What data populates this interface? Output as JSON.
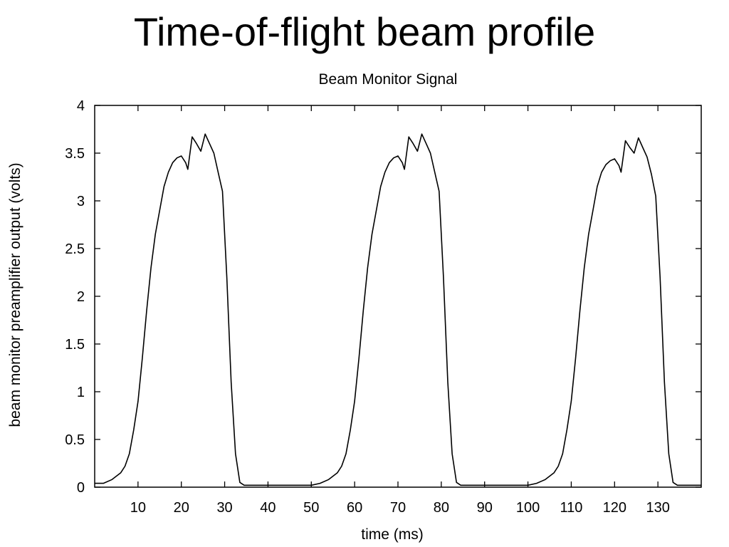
{
  "slide": {
    "title": "Time-of-flight beam profile"
  },
  "chart_data": {
    "type": "line",
    "title": "Beam Monitor Signal",
    "xlabel": "time (ms)",
    "ylabel": "beam monitor preamplifier output (volts)",
    "xlim": [
      0,
      140
    ],
    "ylim": [
      0,
      4
    ],
    "x_ticks": [
      10,
      20,
      30,
      40,
      50,
      60,
      70,
      80,
      90,
      100,
      110,
      120,
      130
    ],
    "x_tick_labels": [
      "10",
      "20",
      "30",
      "40",
      "50",
      "60",
      "70",
      "80",
      "90",
      "100",
      "110",
      "120",
      "130"
    ],
    "y_ticks": [
      0,
      0.5,
      1,
      1.5,
      2,
      2.5,
      3,
      3.5,
      4
    ],
    "y_tick_labels": [
      "0",
      "0.5",
      "1",
      "1.5",
      "2",
      "2.5",
      "3",
      "3.5",
      "4"
    ],
    "grid": false,
    "legend": "none",
    "series_color": "#000000",
    "series": [
      {
        "points": [
          [
            0,
            0.04
          ],
          [
            2,
            0.04
          ],
          [
            4,
            0.08
          ],
          [
            6,
            0.15
          ],
          [
            7,
            0.22
          ],
          [
            8,
            0.35
          ],
          [
            9,
            0.6
          ],
          [
            10,
            0.9
          ],
          [
            11,
            1.35
          ],
          [
            12,
            1.85
          ],
          [
            13,
            2.3
          ],
          [
            14,
            2.65
          ],
          [
            15,
            2.9
          ],
          [
            16,
            3.15
          ],
          [
            17,
            3.3
          ],
          [
            18,
            3.4
          ],
          [
            19,
            3.45
          ],
          [
            20,
            3.47
          ],
          [
            21,
            3.4
          ],
          [
            21.5,
            3.33
          ],
          [
            22.5,
            3.67
          ],
          [
            23.5,
            3.6
          ],
          [
            24.5,
            3.52
          ],
          [
            25.5,
            3.7
          ],
          [
            26.5,
            3.6
          ],
          [
            27.5,
            3.5
          ],
          [
            28.5,
            3.3
          ],
          [
            29.5,
            3.1
          ],
          [
            30.5,
            2.2
          ],
          [
            31.5,
            1.1
          ],
          [
            32.5,
            0.35
          ],
          [
            33.5,
            0.05
          ],
          [
            34.5,
            0.02
          ],
          [
            50,
            0.02
          ],
          [
            52,
            0.04
          ],
          [
            54,
            0.08
          ],
          [
            56,
            0.15
          ],
          [
            57,
            0.22
          ],
          [
            58,
            0.35
          ],
          [
            59,
            0.6
          ],
          [
            60,
            0.9
          ],
          [
            61,
            1.35
          ],
          [
            62,
            1.85
          ],
          [
            63,
            2.3
          ],
          [
            64,
            2.65
          ],
          [
            65,
            2.9
          ],
          [
            66,
            3.15
          ],
          [
            67,
            3.3
          ],
          [
            68,
            3.4
          ],
          [
            69,
            3.45
          ],
          [
            70,
            3.47
          ],
          [
            71,
            3.4
          ],
          [
            71.5,
            3.33
          ],
          [
            72.5,
            3.67
          ],
          [
            73.5,
            3.6
          ],
          [
            74.5,
            3.52
          ],
          [
            75.5,
            3.7
          ],
          [
            76.5,
            3.6
          ],
          [
            77.5,
            3.5
          ],
          [
            78.5,
            3.3
          ],
          [
            79.5,
            3.1
          ],
          [
            80.5,
            2.2
          ],
          [
            81.5,
            1.1
          ],
          [
            82.5,
            0.35
          ],
          [
            83.5,
            0.05
          ],
          [
            84.5,
            0.02
          ],
          [
            100,
            0.02
          ],
          [
            102,
            0.04
          ],
          [
            104,
            0.08
          ],
          [
            106,
            0.15
          ],
          [
            107,
            0.22
          ],
          [
            108,
            0.35
          ],
          [
            109,
            0.6
          ],
          [
            110,
            0.9
          ],
          [
            111,
            1.35
          ],
          [
            112,
            1.85
          ],
          [
            113,
            2.3
          ],
          [
            114,
            2.65
          ],
          [
            115,
            2.9
          ],
          [
            116,
            3.15
          ],
          [
            117,
            3.3
          ],
          [
            118,
            3.38
          ],
          [
            119,
            3.42
          ],
          [
            120,
            3.44
          ],
          [
            121,
            3.37
          ],
          [
            121.5,
            3.3
          ],
          [
            122.5,
            3.63
          ],
          [
            123.5,
            3.56
          ],
          [
            124.5,
            3.5
          ],
          [
            125.5,
            3.66
          ],
          [
            126.5,
            3.56
          ],
          [
            127.5,
            3.46
          ],
          [
            128.5,
            3.28
          ],
          [
            129.5,
            3.05
          ],
          [
            130.5,
            2.2
          ],
          [
            131.5,
            1.1
          ],
          [
            132.5,
            0.35
          ],
          [
            133.5,
            0.05
          ],
          [
            134.5,
            0.02
          ],
          [
            140,
            0.02
          ]
        ]
      }
    ]
  }
}
